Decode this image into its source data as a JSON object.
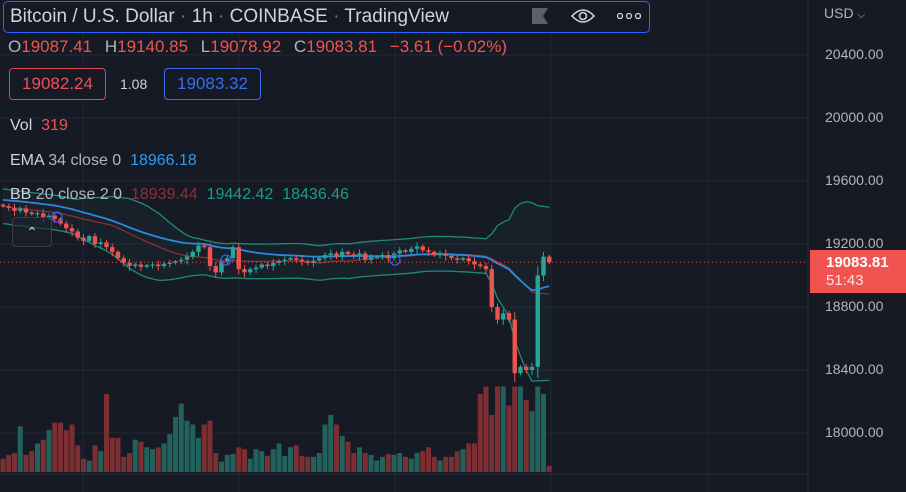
{
  "header": {
    "symbol": "Bitcoin / U.S. Dollar",
    "interval": "1h",
    "exchange": "COINBASE",
    "source": "TradingView",
    "icons": [
      "flag-icon",
      "eye-icon",
      "more-icon"
    ]
  },
  "ohlc": {
    "o_label": "O",
    "o": "19087.41",
    "h_label": "H",
    "h": "19140.85",
    "l_label": "L",
    "l": "19078.92",
    "c_label": "C",
    "c": "19083.81",
    "change": "−3.61 (−0.02%)"
  },
  "quote": {
    "bid": "19082.24",
    "spread": "1.08",
    "ask": "19083.32"
  },
  "indicators": {
    "vol": {
      "name": "Vol",
      "value": "319"
    },
    "ema": {
      "name": "EMA",
      "params": "34 close 0",
      "value": "18966.18"
    },
    "bb": {
      "name": "BB",
      "params": "20 close 2 0",
      "basis": "18939.44",
      "upper": "19442.42",
      "lower": "18436.46"
    }
  },
  "price_axis": {
    "currency": "USD",
    "ticks": [
      "20400.00",
      "20000.00",
      "19600.00",
      "19200.00",
      "18800.00",
      "18400.00",
      "18000.00"
    ],
    "last_price": "19083.81",
    "countdown": "51:43"
  },
  "colors": {
    "background": "#161a25",
    "up": "#26a69a",
    "down": "#ef5350",
    "ema": "#2f86e0",
    "bb_basis": "#8c2f33",
    "bb_band": "#1f8a78",
    "accent": "#2962ff"
  },
  "chart_data": {
    "type": "candlestick",
    "closes": [
      19440,
      19430,
      19410,
      19425,
      19400,
      19390,
      19395,
      19370,
      19380,
      19360,
      19330,
      19300,
      19280,
      19240,
      19220,
      19250,
      19200,
      19210,
      19180,
      19150,
      19110,
      19080,
      19060,
      19070,
      19055,
      19065,
      19070,
      19060,
      19075,
      19080,
      19090,
      19100,
      19120,
      19150,
      19190,
      19180,
      19060,
      19020,
      19090,
      19110,
      19180,
      19040,
      19020,
      19040,
      19050,
      19070,
      19060,
      19080,
      19090,
      19100,
      19110,
      19100,
      19090,
      19080,
      19095,
      19110,
      19130,
      19140,
      19120,
      19150,
      19135,
      19125,
      19140,
      19100,
      19115,
      19120,
      19130,
      19110,
      19140,
      19160,
      19150,
      19170,
      19185,
      19160,
      19150,
      19130,
      19140,
      19125,
      19110,
      19100,
      19110,
      19090,
      19070,
      19060,
      19040,
      18800,
      18720,
      18760,
      18720,
      18380,
      18420,
      18400,
      18420,
      19000,
      19120,
      19083.81
    ],
    "volumes": [
      700,
      900,
      1000,
      2400,
      900,
      1100,
      1500,
      1700,
      2200,
      2600,
      2600,
      2200,
      2500,
      1400,
      700,
      600,
      1400,
      1100,
      4100,
      1800,
      1800,
      800,
      1000,
      1700,
      1600,
      1300,
      1200,
      1300,
      1500,
      2000,
      2900,
      3600,
      2700,
      2500,
      1800,
      2500,
      2700,
      1000,
      550,
      900,
      950,
      1300,
      1200,
      700,
      1200,
      1100,
      850,
      1200,
      1500,
      850,
      1300,
      1400,
      850,
      800,
      800,
      1000,
      2500,
      3000,
      2500,
      1900,
      1600,
      1000,
      1300,
      1000,
      900,
      600,
      800,
      950,
      900,
      1000,
      800,
      700,
      1000,
      1100,
      1300,
      800,
      600,
      800,
      800,
      1100,
      1200,
      1500,
      1500,
      4100,
      4500,
      3000,
      4500,
      4500,
      3500,
      4500,
      4500,
      3800,
      3200,
      4500,
      4100,
      319
    ],
    "ylim": [
      17700,
      20700
    ]
  }
}
